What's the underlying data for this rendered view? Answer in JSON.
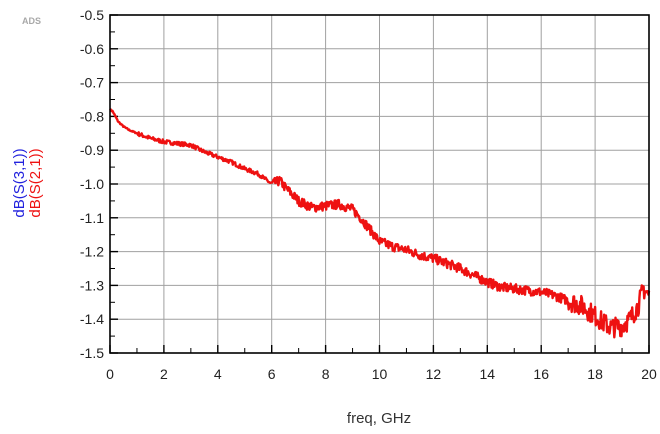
{
  "watermark": "ADS",
  "chart_data": {
    "type": "line",
    "title": "",
    "xlabel": "freq, GHz",
    "ylabel_series": [
      {
        "text": "dB(S(3,1))",
        "color": "#2222dd"
      },
      {
        "text": "dB(S(2,1))",
        "color": "#ee1111"
      }
    ],
    "xlim": [
      0,
      20
    ],
    "ylim": [
      -1.5,
      -0.5
    ],
    "x_ticks": [
      0,
      2,
      4,
      6,
      8,
      10,
      12,
      14,
      16,
      18,
      20
    ],
    "x_tick_labels": [
      "0",
      "2",
      "4",
      "6",
      "8",
      "10",
      "12",
      "14",
      "16",
      "18",
      "20"
    ],
    "y_ticks": [
      -0.5,
      -0.6,
      -0.7,
      -0.8,
      -0.9,
      -1.0,
      -1.1,
      -1.2,
      -1.3,
      -1.4,
      -1.5
    ],
    "y_tick_labels": [
      "-0.5",
      "-0.6",
      "-0.7",
      "-0.8",
      "-0.9",
      "-1.0",
      "-1.1",
      "-1.2",
      "-1.3",
      "-1.4",
      "-1.5"
    ],
    "grid": true,
    "series": [
      {
        "color": "#ee1111",
        "points": [
          [
            0.0,
            -0.78
          ],
          [
            0.1,
            -0.785
          ],
          [
            0.2,
            -0.8
          ],
          [
            0.3,
            -0.815
          ],
          [
            0.5,
            -0.83
          ],
          [
            0.7,
            -0.84
          ],
          [
            1.0,
            -0.85
          ],
          [
            1.5,
            -0.865
          ],
          [
            2.0,
            -0.875
          ],
          [
            2.5,
            -0.88
          ],
          [
            3.0,
            -0.885
          ],
          [
            3.5,
            -0.905
          ],
          [
            4.0,
            -0.92
          ],
          [
            4.5,
            -0.935
          ],
          [
            5.0,
            -0.955
          ],
          [
            5.5,
            -0.97
          ],
          [
            6.0,
            -1.0
          ],
          [
            6.3,
            -0.99
          ],
          [
            6.5,
            -1.01
          ],
          [
            7.0,
            -1.05
          ],
          [
            7.5,
            -1.07
          ],
          [
            8.0,
            -1.065
          ],
          [
            8.5,
            -1.06
          ],
          [
            9.0,
            -1.075
          ],
          [
            9.3,
            -1.1
          ],
          [
            9.6,
            -1.13
          ],
          [
            10.0,
            -1.17
          ],
          [
            10.5,
            -1.185
          ],
          [
            11.0,
            -1.195
          ],
          [
            11.5,
            -1.21
          ],
          [
            12.0,
            -1.22
          ],
          [
            12.5,
            -1.235
          ],
          [
            13.0,
            -1.25
          ],
          [
            13.5,
            -1.27
          ],
          [
            14.0,
            -1.29
          ],
          [
            14.5,
            -1.305
          ],
          [
            15.0,
            -1.31
          ],
          [
            15.5,
            -1.315
          ],
          [
            16.0,
            -1.32
          ],
          [
            16.5,
            -1.33
          ],
          [
            17.0,
            -1.345
          ],
          [
            17.5,
            -1.36
          ],
          [
            18.0,
            -1.39
          ],
          [
            18.3,
            -1.41
          ],
          [
            18.6,
            -1.425
          ],
          [
            19.0,
            -1.42
          ],
          [
            19.3,
            -1.4
          ],
          [
            19.6,
            -1.36
          ],
          [
            19.8,
            -1.31
          ],
          [
            20.0,
            -1.33
          ]
        ]
      }
    ]
  }
}
